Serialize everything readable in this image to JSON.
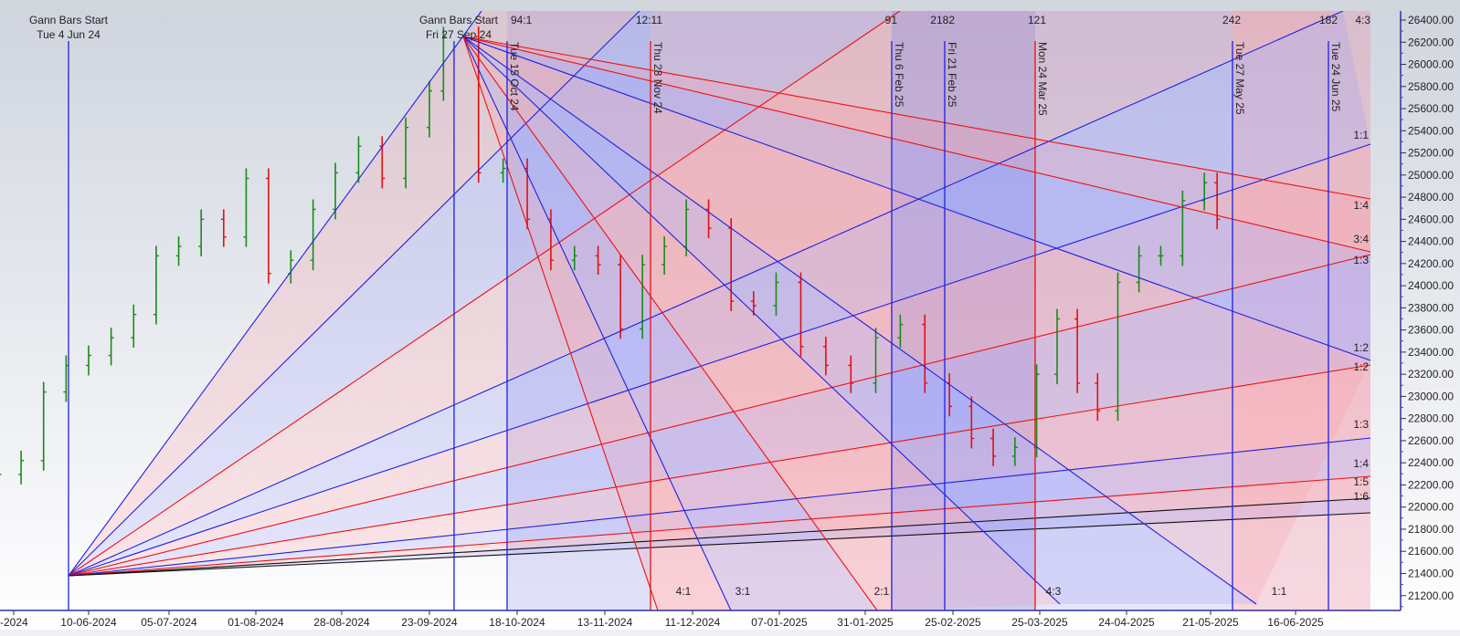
{
  "colors": {
    "up_bar": "#1a8a1a",
    "down_bar": "#e01010",
    "blue_line": "#2020e0",
    "red_line": "#ee1010",
    "black_line": "#111111",
    "axis": "#3030a0"
  },
  "chart_data": {
    "type": "ohlc-bar",
    "title": "",
    "y_axis": {
      "position": "right",
      "range": [
        21060,
        26500
      ],
      "ticks": [
        26400,
        26200,
        26000,
        25800,
        25600,
        25400,
        25200,
        25000,
        24800,
        24600,
        24400,
        24200,
        24000,
        23800,
        23600,
        23400,
        23200,
        23000,
        22800,
        22600,
        22400,
        22200,
        22000,
        21800,
        21600,
        21400,
        21200
      ],
      "tick_format": "2 decimals"
    },
    "x_axis": {
      "ticks": [
        "-2024",
        "10-06-2024",
        "05-07-2024",
        "01-08-2024",
        "28-08-2024",
        "23-09-2024",
        "18-10-2024",
        "13-11-2024",
        "11-12-2024",
        "07-01-2025",
        "31-01-2025",
        "25-02-2025",
        "25-03-2025",
        "24-04-2025",
        "21-05-2025",
        "16-06-2025"
      ]
    },
    "grid": false,
    "price_series_weekly_approx": [
      [
        "2024-05-13",
        22295
      ],
      [
        "2024-05-20",
        22420
      ],
      [
        "2024-05-27",
        23040
      ],
      [
        "2024-06-03",
        23280
      ],
      [
        "2024-06-10",
        23370
      ],
      [
        "2024-06-17",
        23530
      ],
      [
        "2024-06-24",
        23740
      ],
      [
        "2024-07-01",
        24270
      ],
      [
        "2024-07-08",
        24355
      ],
      [
        "2024-07-15",
        24600
      ],
      [
        "2024-07-22",
        24440
      ],
      [
        "2024-07-29",
        24970
      ],
      [
        "2024-08-05",
        24110
      ],
      [
        "2024-08-12",
        24230
      ],
      [
        "2024-08-19",
        24690
      ],
      [
        "2024-08-26",
        25020
      ],
      [
        "2024-09-02",
        25260
      ],
      [
        "2024-09-09",
        24970
      ],
      [
        "2024-09-16",
        25430
      ],
      [
        "2024-09-23",
        25760
      ],
      [
        "2024-09-27",
        26250
      ],
      [
        "2024-10-07",
        25020
      ],
      [
        "2024-10-14",
        25060
      ],
      [
        "2024-10-21",
        24600
      ],
      [
        "2024-10-28",
        24230
      ],
      [
        "2024-11-04",
        24270
      ],
      [
        "2024-11-11",
        24190
      ],
      [
        "2024-11-18",
        23610
      ],
      [
        "2024-11-25",
        24190
      ],
      [
        "2024-12-02",
        24355
      ],
      [
        "2024-12-09",
        24690
      ],
      [
        "2024-12-16",
        24520
      ],
      [
        "2024-12-23",
        23860
      ],
      [
        "2024-12-30",
        23820
      ],
      [
        "2025-01-06",
        24030
      ],
      [
        "2025-01-13",
        23450
      ],
      [
        "2025-01-20",
        23280
      ],
      [
        "2025-01-27",
        23120
      ],
      [
        "2025-02-03",
        23530
      ],
      [
        "2025-02-10",
        23650
      ],
      [
        "2025-02-17",
        23120
      ],
      [
        "2025-02-24",
        22910
      ],
      [
        "2025-03-03",
        22620
      ],
      [
        "2025-03-10",
        22460
      ],
      [
        "2025-03-17",
        22540
      ],
      [
        "2025-03-24",
        23200
      ],
      [
        "2025-03-31",
        23700
      ],
      [
        "2025-04-07",
        23120
      ],
      [
        "2025-04-14",
        22870
      ],
      [
        "2025-04-21",
        24030
      ],
      [
        "2025-04-28",
        24270
      ],
      [
        "2025-05-05",
        24270
      ],
      [
        "2025-05-12",
        24770
      ],
      [
        "2025-05-19",
        24930
      ],
      [
        "2025-05-23",
        24600
      ]
    ],
    "gann_start_labels": [
      {
        "title": "Gann Bars Start",
        "date": "Tue 4 Jun 24"
      },
      {
        "title": "Gann Bars Start",
        "date": "Fri 27 Sep 24"
      }
    ],
    "time_lines": [
      {
        "label": "Tue 4 Jun 24",
        "color": "blue",
        "show_rotated": false
      },
      {
        "label": "Fri 27 Sep 24",
        "color": "blue",
        "show_rotated": false
      },
      {
        "label": "Tue 15 Oct 24",
        "color": "blue",
        "show_rotated": true
      },
      {
        "label": "Thu 28 Nov 24",
        "color": "red",
        "show_rotated": true
      },
      {
        "label": "Thu 6 Feb 25",
        "color": "blue",
        "show_rotated": true
      },
      {
        "label": "Fri 21 Feb 25",
        "color": "blue",
        "show_rotated": true
      },
      {
        "label": "Mon 24 Mar 25",
        "color": "red",
        "show_rotated": true
      },
      {
        "label": "Tue 27 May 25",
        "color": "blue",
        "show_rotated": true
      },
      {
        "label": "Tue 24 Jun 25",
        "color": "blue",
        "show_rotated": true
      }
    ],
    "top_counts": [
      "94:1",
      "12:11",
      "91",
      "2182",
      "121",
      "242",
      "182",
      "4:3"
    ],
    "right_ratio_labels": [
      "1:1",
      "1:4",
      "3:4",
      "1:3",
      "1:2",
      "1:2",
      "1:3",
      "1:4",
      "1:5",
      "1:6"
    ],
    "bottom_ratio_labels": [
      "4:1",
      "3:1",
      "2:1",
      "4:3",
      "1:1"
    ]
  }
}
